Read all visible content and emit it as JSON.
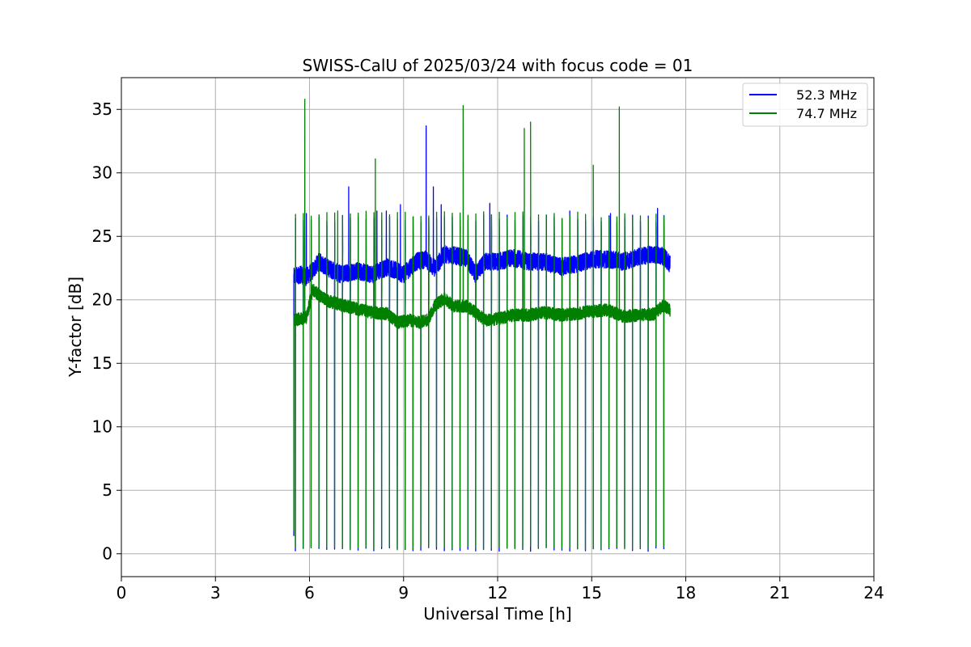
{
  "chart_data": {
    "type": "line",
    "title": "SWISS-CalU of 2025/03/24 with focus code = 01",
    "xlabel": "Universal Time [h]",
    "ylabel": "Y-factor [dB]",
    "xlim": [
      0,
      24
    ],
    "ylim": [
      -1.8,
      37.5
    ],
    "xticks": [
      0,
      3,
      6,
      9,
      12,
      15,
      18,
      21,
      24
    ],
    "yticks": [
      0,
      5,
      10,
      15,
      20,
      25,
      30,
      35
    ],
    "grid": true,
    "legend_position": "top-right",
    "data_start_h": 5.5,
    "data_end_h": 17.5,
    "calibration_pulse_times_h": [
      5.55,
      5.8,
      6.05,
      6.3,
      6.55,
      6.8,
      7.05,
      7.3,
      7.55,
      7.8,
      8.05,
      8.3,
      8.55,
      8.8,
      9.05,
      9.3,
      9.55,
      9.8,
      10.05,
      10.3,
      10.55,
      10.8,
      11.05,
      11.3,
      11.55,
      11.8,
      12.05,
      12.3,
      12.55,
      12.8,
      13.05,
      13.3,
      13.55,
      13.8,
      14.05,
      14.3,
      14.55,
      14.8,
      15.05,
      15.3,
      15.55,
      15.8,
      16.05,
      16.3,
      16.55,
      16.8,
      17.05,
      17.3
    ],
    "series": [
      {
        "name": "52.3 MHz",
        "color": "#0000ff",
        "baseline": {
          "x": [
            5.5,
            5.7,
            5.9,
            6.1,
            6.3,
            6.6,
            7.0,
            7.5,
            8.0,
            8.5,
            9.0,
            9.4,
            9.7,
            10.0,
            10.3,
            10.6,
            11.0,
            11.3,
            11.6,
            12.0,
            12.5,
            13.0,
            13.5,
            14.0,
            14.5,
            15.0,
            15.5,
            16.0,
            16.5,
            17.0,
            17.3,
            17.5
          ],
          "y": [
            21.8,
            22.0,
            21.8,
            22.3,
            23.0,
            22.5,
            22.0,
            22.3,
            22.0,
            22.6,
            22.0,
            23.0,
            23.2,
            22.5,
            23.6,
            23.5,
            23.3,
            22.0,
            23.0,
            23.0,
            23.3,
            23.0,
            23.0,
            22.6,
            22.8,
            23.2,
            23.2,
            23.0,
            23.4,
            23.6,
            23.4,
            22.8
          ]
        },
        "spikes": [
          {
            "x": 5.9,
            "y": 26.8
          },
          {
            "x": 7.25,
            "y": 28.9
          },
          {
            "x": 8.15,
            "y": 27.0
          },
          {
            "x": 8.45,
            "y": 27.0
          },
          {
            "x": 8.9,
            "y": 27.5
          },
          {
            "x": 9.72,
            "y": 33.7
          },
          {
            "x": 9.95,
            "y": 28.9
          },
          {
            "x": 10.2,
            "y": 27.5
          },
          {
            "x": 11.75,
            "y": 27.6
          },
          {
            "x": 14.3,
            "y": 27.0
          },
          {
            "x": 15.6,
            "y": 26.8
          },
          {
            "x": 17.1,
            "y": 27.2
          }
        ],
        "pulse_peak_y": 26.4,
        "pulse_low_y": 0.2
      },
      {
        "name": "74.7 MHz",
        "color": "#008000",
        "baseline": {
          "x": [
            5.5,
            5.7,
            5.9,
            6.1,
            6.3,
            6.6,
            7.0,
            7.5,
            8.0,
            8.5,
            8.8,
            9.2,
            9.5,
            9.8,
            10.0,
            10.3,
            10.6,
            11.0,
            11.3,
            11.6,
            12.0,
            12.5,
            13.0,
            13.5,
            14.0,
            14.5,
            15.0,
            15.5,
            16.0,
            16.5,
            17.0,
            17.3,
            17.5
          ],
          "y": [
            18.4,
            18.5,
            18.6,
            20.8,
            20.4,
            19.9,
            19.6,
            19.3,
            19.0,
            18.9,
            18.2,
            18.4,
            18.2,
            18.5,
            19.6,
            20.1,
            19.5,
            19.5,
            19.0,
            18.4,
            18.5,
            18.8,
            18.8,
            19.0,
            18.8,
            18.9,
            19.1,
            19.2,
            18.7,
            18.8,
            18.9,
            19.6,
            19.2
          ]
        },
        "spikes": [
          {
            "x": 5.85,
            "y": 35.8
          },
          {
            "x": 6.9,
            "y": 27.0
          },
          {
            "x": 8.1,
            "y": 31.1
          },
          {
            "x": 10.9,
            "y": 35.3
          },
          {
            "x": 12.85,
            "y": 33.5
          },
          {
            "x": 13.05,
            "y": 34.0
          },
          {
            "x": 15.05,
            "y": 30.6
          },
          {
            "x": 15.88,
            "y": 35.2
          }
        ],
        "pulse_peak_y": 26.7,
        "pulse_low_y": 0.3
      }
    ]
  }
}
